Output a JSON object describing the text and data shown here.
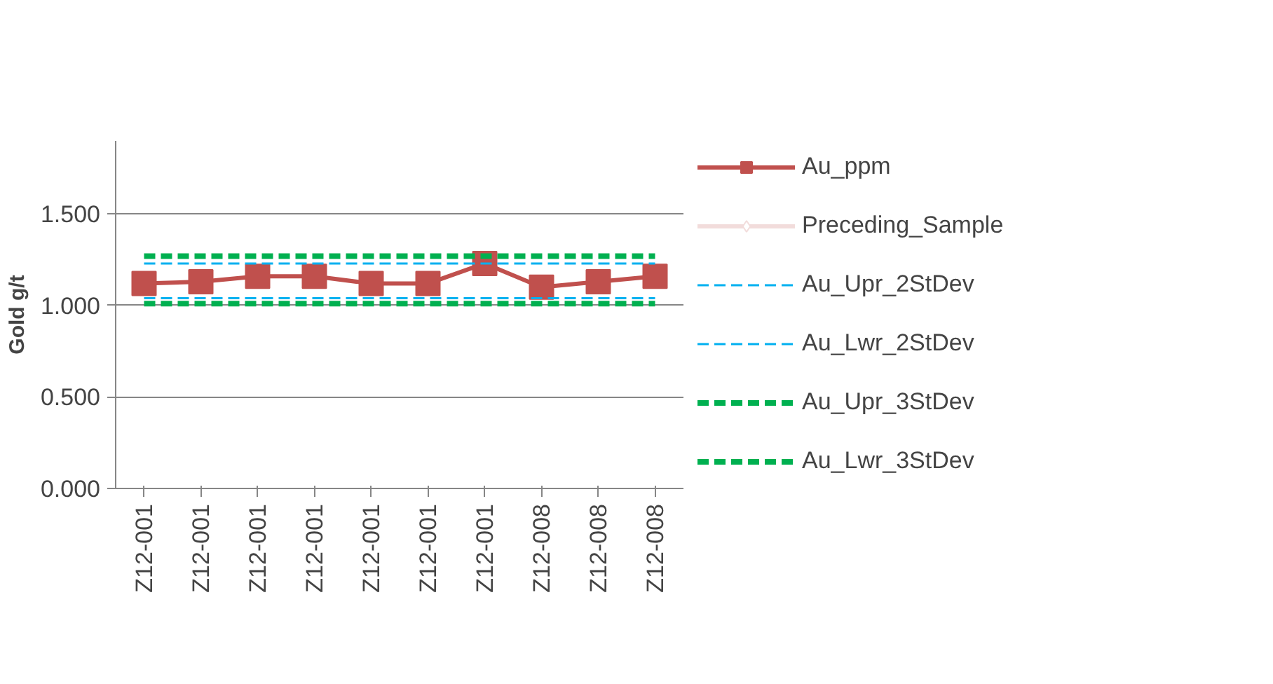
{
  "chart_data": {
    "type": "line",
    "ylabel": "Gold g/t",
    "categories": [
      "Z12-001",
      "Z12-001",
      "Z12-001",
      "Z12-001",
      "Z12-001",
      "Z12-001",
      "Z12-001",
      "Z12-008",
      "Z12-008",
      "Z12-008"
    ],
    "series": [
      {
        "name": "Au_ppm",
        "color": "#c0504d",
        "marker": "square",
        "line_style": "solid",
        "values": [
          1.12,
          1.13,
          1.16,
          1.16,
          1.12,
          1.12,
          1.23,
          1.1,
          1.13,
          1.16
        ]
      },
      {
        "name": "Preceding_Sample",
        "color": "#f2dcdb",
        "marker": "diamond",
        "line_style": "solid",
        "values": [
          null,
          null,
          null,
          null,
          null,
          null,
          null,
          null,
          null,
          null
        ]
      },
      {
        "name": "Au_Upr_2StDev",
        "color": "#00b0f0",
        "marker": "none",
        "line_style": "dashed",
        "values": [
          1.23,
          1.23,
          1.23,
          1.23,
          1.23,
          1.23,
          1.23,
          1.23,
          1.23,
          1.23
        ]
      },
      {
        "name": "Au_Lwr_2StDev",
        "color": "#00b0f0",
        "marker": "none",
        "line_style": "dashed",
        "values": [
          1.04,
          1.04,
          1.04,
          1.04,
          1.04,
          1.04,
          1.04,
          1.04,
          1.04,
          1.04
        ]
      },
      {
        "name": "Au_Upr_3StDev",
        "color": "#00b050",
        "marker": "none",
        "line_style": "dashed",
        "values": [
          1.27,
          1.27,
          1.27,
          1.27,
          1.27,
          1.27,
          1.27,
          1.27,
          1.27,
          1.27
        ]
      },
      {
        "name": "Au_Lwr_3StDev",
        "color": "#00b050",
        "marker": "none",
        "line_style": "dashed",
        "values": [
          1.01,
          1.01,
          1.01,
          1.01,
          1.01,
          1.01,
          1.01,
          1.01,
          1.01,
          1.01
        ]
      }
    ],
    "ylim": [
      0,
      1.9
    ],
    "yticks": [
      {
        "value": 0,
        "label": "0.000"
      },
      {
        "value": 0.5,
        "label": "0.500"
      },
      {
        "value": 1,
        "label": "1.000"
      },
      {
        "value": 1.5,
        "label": "1.500"
      }
    ],
    "grid": "y",
    "legend": "right"
  }
}
